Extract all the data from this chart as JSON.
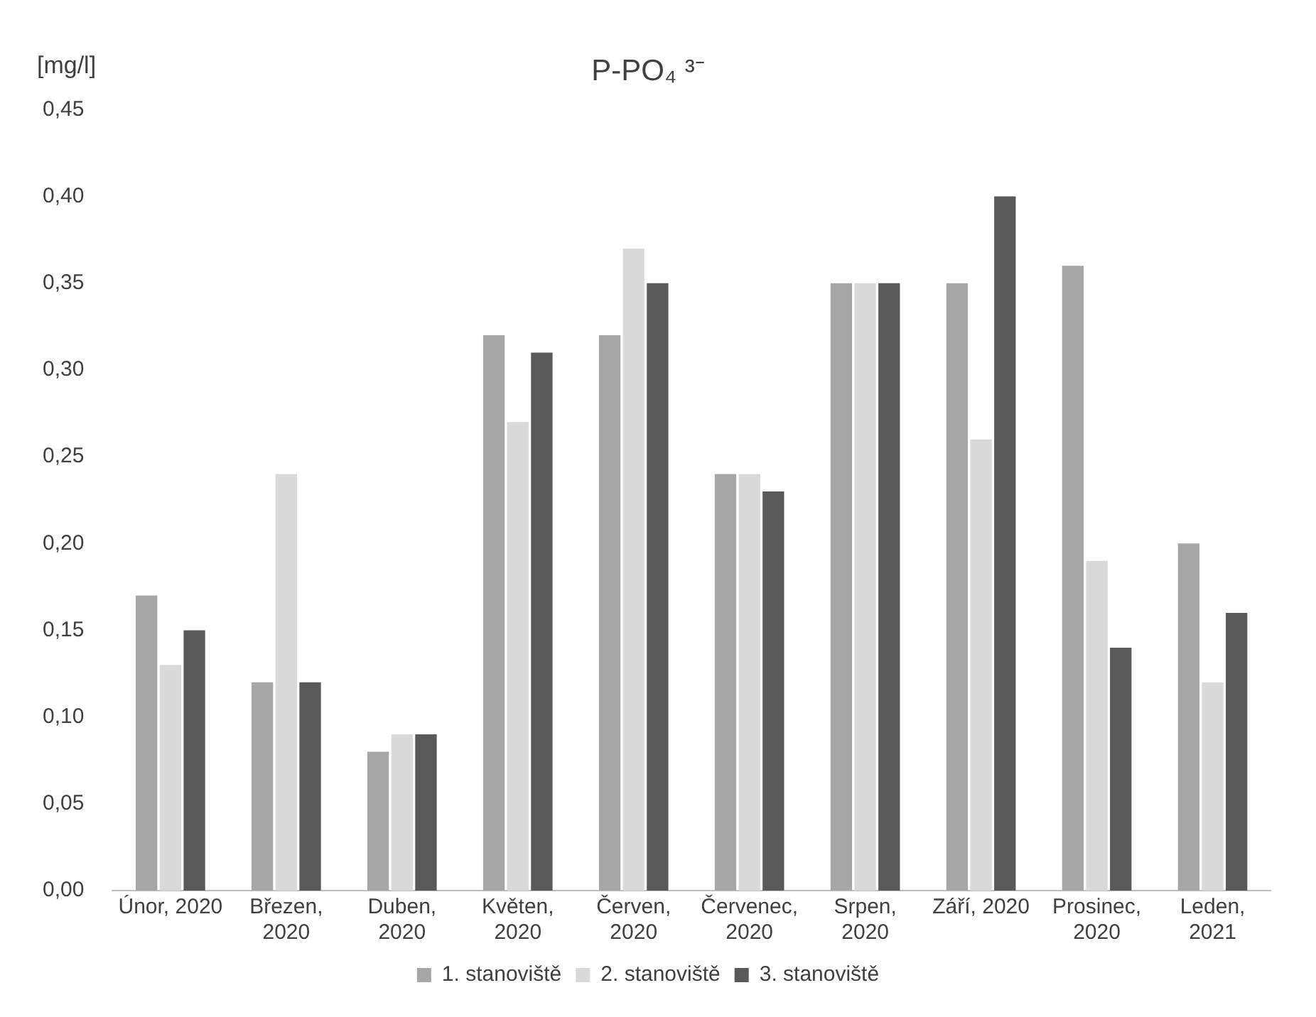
{
  "chart_data": {
    "type": "bar",
    "title": "P-PO₄ ³⁻",
    "ylabel": "[mg/l]",
    "categories": [
      "Únor, 2020",
      "Březen, 2020",
      "Duben, 2020",
      "Květen, 2020",
      "Červen, 2020",
      "Červenec, 2020",
      "Srpen, 2020",
      "Září, 2020",
      "Prosinec, 2020",
      "Leden, 2021"
    ],
    "series": [
      {
        "name": "1. stanoviště",
        "color": "#a6a6a6",
        "values": [
          0.17,
          0.12,
          0.08,
          0.32,
          0.32,
          0.24,
          0.35,
          0.35,
          0.36,
          0.2
        ]
      },
      {
        "name": "2. stanoviště",
        "color": "#d9d9d9",
        "values": [
          0.13,
          0.24,
          0.09,
          0.27,
          0.37,
          0.24,
          0.35,
          0.26,
          0.19,
          0.12
        ]
      },
      {
        "name": "3. stanoviště",
        "color": "#595959",
        "values": [
          0.15,
          0.12,
          0.09,
          0.31,
          0.35,
          0.23,
          0.35,
          0.4,
          0.14,
          0.16
        ]
      }
    ],
    "ylim": [
      0,
      0.45
    ],
    "yticks": [
      {
        "value": 0,
        "label": "0,00"
      },
      {
        "value": 0.05,
        "label": "0,05"
      },
      {
        "value": 0.1,
        "label": "0,10"
      },
      {
        "value": 0.15,
        "label": "0,15"
      },
      {
        "value": 0.2,
        "label": "0,20"
      },
      {
        "value": 0.25,
        "label": "0,25"
      },
      {
        "value": 0.3,
        "label": "0,30"
      },
      {
        "value": 0.35,
        "label": "0,35"
      },
      {
        "value": 0.4,
        "label": "0,40"
      },
      {
        "value": 0.45,
        "label": "0,45"
      }
    ],
    "grid": false,
    "legend": "bottom"
  }
}
